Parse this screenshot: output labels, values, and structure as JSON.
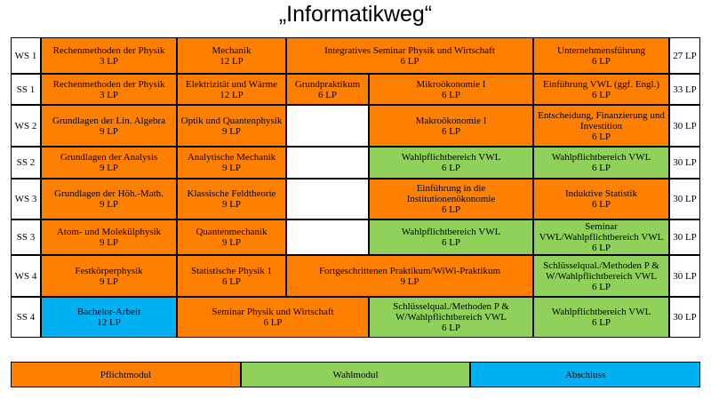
{
  "title": "„Informatikweg“",
  "colors": {
    "pflicht": "#ff8000",
    "wahl": "#8fd15a",
    "abschluss": "#00b0f0"
  },
  "rows": [
    {
      "sem": "WS 1",
      "total": "27 LP"
    },
    {
      "sem": "SS 1",
      "total": "33 LP"
    },
    {
      "sem": "WS 2",
      "total": "30 LP"
    },
    {
      "sem": "SS 2",
      "total": "30 LP"
    },
    {
      "sem": "WS 3",
      "total": "30 LP"
    },
    {
      "sem": "SS 3",
      "total": "30 LP"
    },
    {
      "sem": "WS 4",
      "total": "30 LP"
    },
    {
      "sem": "SS 4",
      "total": "30 LP"
    }
  ],
  "modules": [
    {
      "name": "Rechenmethoden der Physik",
      "lp": "3 LP",
      "type": "pflicht"
    },
    {
      "name": "Mechanik",
      "lp": "12 LP",
      "type": "pflicht"
    },
    {
      "name": "Integratives Seminar Physik und Wirtschaft",
      "lp": "6 LP",
      "type": "pflicht"
    },
    {
      "name": "Unternehmensführung",
      "lp": "6 LP",
      "type": "pflicht"
    },
    {
      "name": "Rechenmethoden der Physik",
      "lp": "3 LP",
      "type": "pflicht"
    },
    {
      "name": "Elektrizität und Wärme",
      "lp": "12 LP",
      "type": "pflicht"
    },
    {
      "name": "Grundpraktikum",
      "lp": "6 LP",
      "type": "pflicht"
    },
    {
      "name": "Mikroökonomie I",
      "lp": "6 LP",
      "type": "pflicht"
    },
    {
      "name": "Einführung VWL (ggf. Engl.)",
      "lp": "6 LP",
      "type": "pflicht"
    },
    {
      "name": "Grundlagen der Lin. Algebra",
      "lp": "9 LP",
      "type": "pflicht"
    },
    {
      "name": "Optik und Quantenphysik",
      "lp": "9 LP",
      "type": "pflicht"
    },
    {
      "name": "Makroökonomie I",
      "lp": "6 LP",
      "type": "pflicht"
    },
    {
      "name": "Entscheidung, Finanzierung und Investition",
      "lp": "6 LP",
      "type": "pflicht"
    },
    {
      "name": "Grundlagen der Analysis",
      "lp": "9 LP",
      "type": "pflicht"
    },
    {
      "name": "Analytische Mechanik",
      "lp": "9 LP",
      "type": "pflicht"
    },
    {
      "name": "Wahlpflichtbereich VWL",
      "lp": "6 LP",
      "type": "wahl"
    },
    {
      "name": "Wahlpflichtbereich VWL",
      "lp": "6 LP",
      "type": "wahl"
    },
    {
      "name": "Grundlagen der Höh.-Math.",
      "lp": "9 LP",
      "type": "pflicht"
    },
    {
      "name": "Klassische Feldtheorie",
      "lp": "9 LP",
      "type": "pflicht"
    },
    {
      "name": "Einführung in die Institutionenökonomie",
      "lp": "6 LP",
      "type": "pflicht"
    },
    {
      "name": "Induktive Statistik",
      "lp": "6 LP",
      "type": "pflicht"
    },
    {
      "name": "Atom- und Molekülphysik",
      "lp": "9 LP",
      "type": "pflicht"
    },
    {
      "name": "Quantenmechanik",
      "lp": "9 LP",
      "type": "pflicht"
    },
    {
      "name": "Wahlpflichtbereich VWL",
      "lp": "6 LP",
      "type": "wahl"
    },
    {
      "name": "Seminar VWL/Wahlpflichtbereich VWL",
      "lp": "6 LP",
      "type": "wahl"
    },
    {
      "name": "Festkörperphysik",
      "lp": "9 LP",
      "type": "pflicht"
    },
    {
      "name": "Statistische Physik 1",
      "lp": "6 LP",
      "type": "pflicht"
    },
    {
      "name": "Fortgeschrittenen Praktikum/WiWi-Praktikum",
      "lp": "9 LP",
      "type": "pflicht"
    },
    {
      "name": "Schlüsselqual./Methoden P & W/Wahlpflichtbereich VWL",
      "lp": "6 LP",
      "type": "wahl"
    },
    {
      "name": "Bachelor-Arbeit",
      "lp": "12 LP",
      "type": "abschluss"
    },
    {
      "name": "Seminar Physik und Wirtschaft",
      "lp": "6 LP",
      "type": "pflicht"
    },
    {
      "name": "Schlüsselqual./Methoden P & W/Wahlpflichtbereich VWL",
      "lp": "6 LP",
      "type": "wahl"
    },
    {
      "name": "Wahlpflichtbereich VWL",
      "lp": "6 LP",
      "type": "wahl"
    }
  ],
  "legend": [
    {
      "label": "Pflichtmodul",
      "type": "pflicht"
    },
    {
      "label": "Wahlmodul",
      "type": "wahl"
    },
    {
      "label": "Abschluss",
      "type": "abschluss"
    }
  ]
}
